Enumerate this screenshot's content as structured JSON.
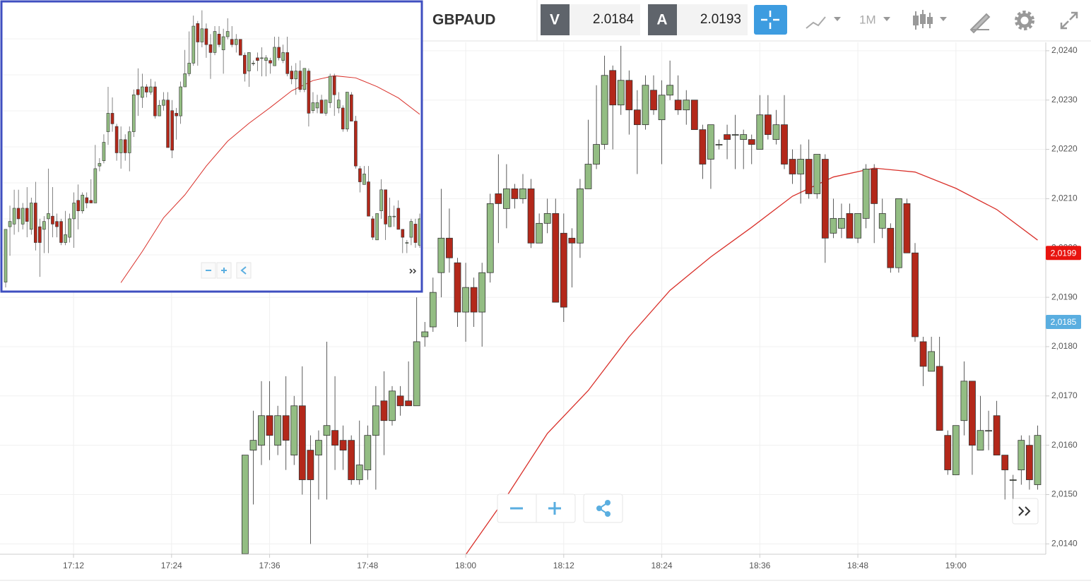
{
  "toolbar": {
    "symbol": "GBPAUD",
    "bid_label": "V",
    "bid": 2.0184,
    "ask_label": "A",
    "ask": 2.0193,
    "interval": "1M"
  },
  "chart_data": {
    "type": "candlestick",
    "x": [
      "17:33",
      "17:34",
      "17:35",
      "17:36",
      "17:37",
      "17:38",
      "17:39",
      "17:40",
      "17:41",
      "17:42",
      "17:43",
      "17:44",
      "17:45",
      "17:46",
      "17:47",
      "17:48",
      "17:49",
      "17:50",
      "17:51",
      "17:52",
      "17:53",
      "17:54",
      "17:55",
      "17:56",
      "17:57",
      "17:58",
      "17:59",
      "18:00",
      "18:01",
      "18:02",
      "18:03",
      "18:04",
      "18:05",
      "18:06",
      "18:07",
      "18:08",
      "18:09",
      "18:10",
      "18:11",
      "18:12",
      "18:13",
      "18:14",
      "18:15",
      "18:16",
      "18:17",
      "18:18",
      "18:19",
      "18:20",
      "18:21",
      "18:22",
      "18:23",
      "18:24",
      "18:25",
      "18:26",
      "18:27",
      "18:28",
      "18:29",
      "18:30",
      "18:31",
      "18:32",
      "18:33",
      "18:34",
      "18:35",
      "18:36",
      "18:37",
      "18:38",
      "18:39",
      "18:40",
      "18:41",
      "18:42",
      "18:43",
      "18:44",
      "18:45",
      "18:46",
      "18:47",
      "18:48",
      "18:49",
      "18:50",
      "18:51",
      "18:52",
      "18:53",
      "18:54",
      "18:55",
      "18:56",
      "18:57",
      "18:58",
      "18:59",
      "19:00",
      "19:01",
      "19:02",
      "19:03",
      "19:04",
      "19:05",
      "19:06",
      "19:07",
      "19:08",
      "19:09",
      "19:10"
    ],
    "open": [
      2.0138,
      2.0159,
      2.016,
      2.0166,
      2.016,
      2.0166,
      2.0158,
      2.0168,
      2.0159,
      2.0158,
      2.0162,
      2.0163,
      2.0161,
      2.0161,
      2.0153,
      2.0155,
      2.0162,
      2.0169,
      2.0165,
      2.017,
      2.0169,
      2.0168,
      2.0182,
      2.0184,
      2.0195,
      2.0202,
      2.0197,
      2.0187,
      2.0192,
      2.0187,
      2.0195,
      2.0211,
      2.0208,
      2.0212,
      2.021,
      2.0212,
      2.0201,
      2.0205,
      2.0207,
      2.0203,
      2.0202,
      2.0201,
      2.0212,
      2.0217,
      2.0221,
      2.0236,
      2.0229,
      2.0234,
      2.0228,
      2.0225,
      2.0232,
      2.0226,
      2.0231,
      2.023,
      2.0228,
      2.023,
      2.0224,
      2.0218,
      2.0221,
      2.0223,
      2.0223,
      2.0222,
      2.0222,
      2.022,
      2.0227,
      2.0222,
      2.0225,
      2.0218,
      2.0215,
      2.0218,
      2.0211,
      2.0218,
      2.0203,
      2.0204,
      2.0207,
      2.0202,
      2.0206,
      2.0216,
      2.0204,
      2.0204,
      2.0196,
      2.0209,
      2.0199,
      2.0181,
      2.0175,
      2.0176,
      2.0162,
      2.0154,
      2.0165,
      2.0173,
      2.0159,
      2.0163,
      2.0166,
      2.0158,
      2.0153,
      2.0155,
      2.016,
      2.0152
    ],
    "high": [
      2.0158,
      2.0167,
      2.0173,
      2.0173,
      2.0168,
      2.0174,
      2.017,
      2.0176,
      2.0162,
      2.0163,
      2.0181,
      2.0174,
      2.0164,
      2.0162,
      2.0165,
      2.0164,
      2.0172,
      2.0175,
      2.0172,
      2.0172,
      2.0177,
      2.019,
      2.0185,
      2.0194,
      2.0212,
      2.0208,
      2.0198,
      2.0197,
      2.0194,
      2.0197,
      2.0211,
      2.0219,
      2.0217,
      2.0213,
      2.0215,
      2.0214,
      2.0207,
      2.021,
      2.021,
      2.0207,
      2.0204,
      2.0214,
      2.0226,
      2.0233,
      2.0239,
      2.0237,
      2.0241,
      2.0236,
      2.0232,
      2.0235,
      2.0235,
      2.0234,
      2.0238,
      2.0235,
      2.0232,
      2.023,
      2.0225,
      2.0225,
      2.0222,
      2.0225,
      2.0227,
      2.0224,
      2.0223,
      2.0231,
      2.0231,
      2.0228,
      2.0231,
      2.022,
      2.0221,
      2.0222,
      2.0219,
      2.0219,
      2.021,
      2.0209,
      2.0209,
      2.0207,
      2.0217,
      2.0217,
      2.021,
      2.0205,
      2.021,
      2.021,
      2.0201,
      2.0182,
      2.0182,
      2.0182,
      2.0163,
      2.0164,
      2.0177,
      2.0173,
      2.017,
      2.0167,
      2.0169,
      2.0158,
      2.0154,
      2.0162,
      2.0162,
      2.0164
    ],
    "low": [
      2.0136,
      2.0148,
      2.0156,
      2.0157,
      2.0158,
      2.0155,
      2.0156,
      2.015,
      2.014,
      2.0149,
      2.0149,
      2.0155,
      2.0155,
      2.0152,
      2.0152,
      2.0153,
      2.0151,
      2.0158,
      2.0164,
      2.0166,
      2.0168,
      2.0168,
      2.018,
      2.0183,
      2.019,
      2.0195,
      2.0184,
      2.0181,
      2.0184,
      2.018,
      2.0193,
      2.0201,
      2.0204,
      2.0208,
      2.0209,
      2.02,
      2.0201,
      2.0203,
      2.0189,
      2.0185,
      2.0192,
      2.0198,
      2.0212,
      2.0216,
      2.022,
      2.022,
      2.0227,
      2.0223,
      2.0215,
      2.0224,
      2.0227,
      2.0217,
      2.023,
      2.0227,
      2.0225,
      2.0224,
      2.0214,
      2.0212,
      2.022,
      2.0218,
      2.0216,
      2.0216,
      2.0217,
      2.022,
      2.0222,
      2.0221,
      2.0216,
      2.0213,
      2.0209,
      2.021,
      2.021,
      2.0197,
      2.0202,
      2.0202,
      2.0202,
      2.0201,
      2.0204,
      2.0201,
      2.0202,
      2.0195,
      2.0195,
      2.0199,
      2.0181,
      2.0172,
      2.0175,
      2.0163,
      2.0154,
      2.0154,
      2.0162,
      2.0154,
      2.0159,
      2.0159,
      2.0158,
      2.0149,
      2.0149,
      2.0152,
      2.0151,
      2.0151
    ],
    "close": [
      2.0158,
      2.0161,
      2.0166,
      2.0162,
      2.0166,
      2.0161,
      2.0168,
      2.0153,
      2.0153,
      2.0161,
      2.0164,
      2.016,
      2.0159,
      2.0153,
      2.0156,
      2.0162,
      2.0168,
      2.0165,
      2.0171,
      2.0168,
      2.0168,
      2.0181,
      2.0183,
      2.0191,
      2.0202,
      2.0198,
      2.0187,
      2.0192,
      2.0187,
      2.0195,
      2.0209,
      2.0209,
      2.0212,
      2.021,
      2.0212,
      2.0201,
      2.0205,
      2.0207,
      2.0189,
      2.0188,
      2.0201,
      2.0212,
      2.0217,
      2.0221,
      2.0235,
      2.0229,
      2.0234,
      2.0228,
      2.0225,
      2.0233,
      2.0228,
      2.0231,
      2.0233,
      2.0228,
      2.023,
      2.0224,
      2.0217,
      2.0225,
      2.0221,
      2.0222,
      2.0223,
      2.0223,
      2.0221,
      2.0227,
      2.0223,
      2.0225,
      2.0217,
      2.0215,
      2.0218,
      2.0211,
      2.0219,
      2.0202,
      2.0206,
      2.0206,
      2.0202,
      2.0207,
      2.0216,
      2.0209,
      2.0207,
      2.0196,
      2.021,
      2.0199,
      2.0182,
      2.0176,
      2.0179,
      2.0163,
      2.0155,
      2.0164,
      2.0173,
      2.016,
      2.0163,
      2.0163,
      2.0158,
      2.0155,
      2.0153,
      2.0161,
      2.0153,
      2.0162
    ],
    "up_color": "#93bd83",
    "down_color": "#b3281a",
    "moving_average": {
      "color": "#d9302a",
      "x": [
        "18:00",
        "18:05",
        "18:10",
        "18:15",
        "18:20",
        "18:25",
        "18:30",
        "18:35",
        "18:40",
        "18:45",
        "18:50",
        "18:55",
        "19:00",
        "19:05",
        "19:10"
      ],
      "values": [
        2.01378,
        2.01496,
        2.01624,
        2.01711,
        2.0182,
        2.01914,
        2.01982,
        2.02042,
        2.02105,
        2.02144,
        2.02162,
        2.02154,
        2.02121,
        2.02078,
        2.02016
      ]
    },
    "price_tags": [
      {
        "value": 2.0199,
        "label": "2,0199",
        "color": "#e8140f"
      },
      {
        "value": 2.0185,
        "label": "2,0185",
        "color": "#5aaee0"
      }
    ],
    "xlim": [
      "17:03",
      "19:11"
    ],
    "xticks": [
      "17:12",
      "17:24",
      "17:36",
      "17:48",
      "18:00",
      "18:12",
      "18:24",
      "18:36",
      "18:48",
      "19:00"
    ],
    "ylim": [
      2.01379,
      2.02417
    ],
    "yticks": [
      {
        "value": 2.014,
        "label": "2,0140"
      },
      {
        "value": 2.015,
        "label": "2,0150"
      },
      {
        "value": 2.016,
        "label": "2,0160"
      },
      {
        "value": 2.017,
        "label": "2,0170"
      },
      {
        "value": 2.018,
        "label": "2,0180"
      },
      {
        "value": 2.019,
        "label": "2,0190"
      },
      {
        "value": 2.02,
        "label": "2,0200"
      },
      {
        "value": 2.021,
        "label": "2,0210"
      },
      {
        "value": 2.022,
        "label": "2,0220"
      },
      {
        "value": 2.023,
        "label": "2,0230"
      },
      {
        "value": 2.024,
        "label": "2,0240"
      }
    ],
    "grid": true
  }
}
